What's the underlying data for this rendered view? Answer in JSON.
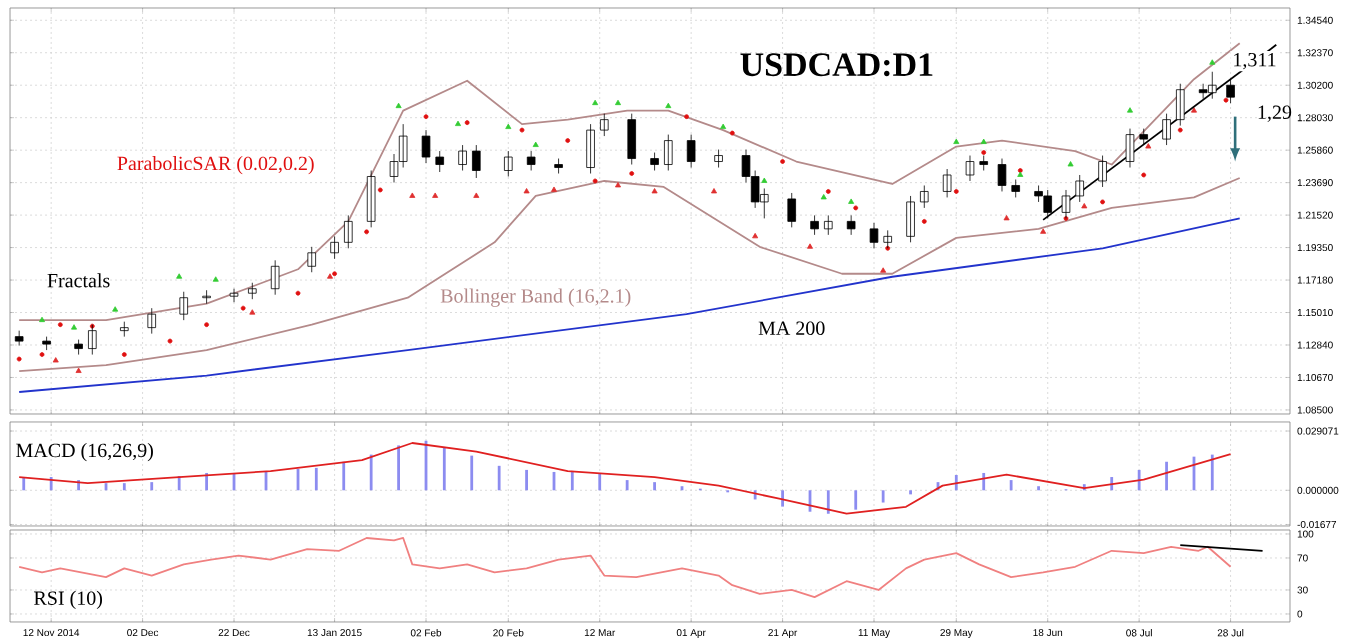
{
  "chart_data": [
    {
      "type": "candlestick",
      "title": "USDCAD:D1",
      "x": [
        "2014-11-05",
        "2014-11-11",
        "2014-11-18",
        "2014-11-21",
        "2014-11-28",
        "2014-12-04",
        "2014-12-11",
        "2014-12-16",
        "2014-12-22",
        "2014-12-26",
        "2014-12-31",
        "2015-01-08",
        "2015-01-13",
        "2015-01-16",
        "2015-01-21",
        "2015-01-26",
        "2015-01-28",
        "2015-02-02",
        "2015-02-05",
        "2015-02-10",
        "2015-02-13",
        "2015-02-20",
        "2015-02-25",
        "2015-03-03",
        "2015-03-10",
        "2015-03-13",
        "2015-03-19",
        "2015-03-24",
        "2015-03-27",
        "2015-04-01",
        "2015-04-07",
        "2015-04-13",
        "2015-04-15",
        "2015-04-17",
        "2015-04-23",
        "2015-04-28",
        "2015-05-01",
        "2015-05-06",
        "2015-05-11",
        "2015-05-14",
        "2015-05-19",
        "2015-05-22",
        "2015-05-27",
        "2015-06-01",
        "2015-06-04",
        "2015-06-08",
        "2015-06-11",
        "2015-06-16",
        "2015-06-18",
        "2015-06-22",
        "2015-06-25",
        "2015-06-30",
        "2015-07-06",
        "2015-07-09",
        "2015-07-14",
        "2015-07-17",
        "2015-07-22",
        "2015-07-24",
        "2015-07-28"
      ],
      "ohlc": [
        [
          1.134,
          1.138,
          1.128,
          1.131
        ],
        [
          1.131,
          1.134,
          1.125,
          1.129
        ],
        [
          1.129,
          1.132,
          1.122,
          1.126
        ],
        [
          1.126,
          1.142,
          1.122,
          1.138
        ],
        [
          1.138,
          1.144,
          1.134,
          1.14
        ],
        [
          1.14,
          1.153,
          1.136,
          1.149
        ],
        [
          1.149,
          1.164,
          1.145,
          1.16
        ],
        [
          1.16,
          1.165,
          1.156,
          1.161
        ],
        [
          1.161,
          1.166,
          1.157,
          1.163
        ],
        [
          1.163,
          1.17,
          1.159,
          1.166
        ],
        [
          1.166,
          1.185,
          1.162,
          1.181
        ],
        [
          1.181,
          1.194,
          1.177,
          1.19
        ],
        [
          1.19,
          1.201,
          1.186,
          1.197
        ],
        [
          1.197,
          1.215,
          1.193,
          1.211
        ],
        [
          1.211,
          1.245,
          1.207,
          1.241
        ],
        [
          1.241,
          1.256,
          1.237,
          1.251
        ],
        [
          1.251,
          1.276,
          1.247,
          1.268
        ],
        [
          1.268,
          1.272,
          1.25,
          1.254
        ],
        [
          1.254,
          1.258,
          1.244,
          1.249
        ],
        [
          1.249,
          1.262,
          1.245,
          1.258
        ],
        [
          1.258,
          1.262,
          1.24,
          1.245
        ],
        [
          1.245,
          1.258,
          1.241,
          1.254
        ],
        [
          1.254,
          1.258,
          1.245,
          1.249
        ],
        [
          1.249,
          1.253,
          1.243,
          1.247
        ],
        [
          1.247,
          1.276,
          1.243,
          1.272
        ],
        [
          1.272,
          1.283,
          1.268,
          1.279
        ],
        [
          1.279,
          1.283,
          1.249,
          1.253
        ],
        [
          1.253,
          1.257,
          1.245,
          1.249
        ],
        [
          1.249,
          1.269,
          1.245,
          1.265
        ],
        [
          1.265,
          1.269,
          1.247,
          1.251
        ],
        [
          1.251,
          1.259,
          1.247,
          1.255
        ],
        [
          1.255,
          1.259,
          1.237,
          1.241
        ],
        [
          1.241,
          1.245,
          1.22,
          1.224
        ],
        [
          1.224,
          1.233,
          1.213,
          1.229
        ],
        [
          1.226,
          1.23,
          1.207,
          1.211
        ],
        [
          1.211,
          1.215,
          1.202,
          1.206
        ],
        [
          1.206,
          1.215,
          1.202,
          1.211
        ],
        [
          1.211,
          1.215,
          1.202,
          1.206
        ],
        [
          1.206,
          1.21,
          1.193,
          1.197
        ],
        [
          1.197,
          1.205,
          1.193,
          1.201
        ],
        [
          1.201,
          1.228,
          1.197,
          1.224
        ],
        [
          1.224,
          1.235,
          1.22,
          1.231
        ],
        [
          1.231,
          1.246,
          1.227,
          1.242
        ],
        [
          1.242,
          1.255,
          1.238,
          1.251
        ],
        [
          1.251,
          1.255,
          1.245,
          1.249
        ],
        [
          1.249,
          1.253,
          1.231,
          1.235
        ],
        [
          1.235,
          1.239,
          1.227,
          1.231
        ],
        [
          1.231,
          1.235,
          1.224,
          1.228
        ],
        [
          1.228,
          1.232,
          1.213,
          1.217
        ],
        [
          1.217,
          1.232,
          1.213,
          1.228
        ],
        [
          1.228,
          1.242,
          1.224,
          1.238
        ],
        [
          1.238,
          1.255,
          1.234,
          1.251
        ],
        [
          1.251,
          1.273,
          1.247,
          1.269
        ],
        [
          1.269,
          1.273,
          1.262,
          1.266
        ],
        [
          1.266,
          1.283,
          1.262,
          1.279
        ],
        [
          1.279,
          1.303,
          1.275,
          1.299
        ],
        [
          1.299,
          1.303,
          1.293,
          1.297
        ],
        [
          1.297,
          1.311,
          1.293,
          1.302
        ],
        [
          1.302,
          1.306,
          1.29,
          1.294
        ]
      ],
      "series": [
        {
          "name": "MA 200",
          "type": "line",
          "color": "#2233cc",
          "x": [
            "2014-11-05",
            "2014-12-16",
            "2015-01-29",
            "2015-03-31",
            "2015-05-15",
            "2015-06-30",
            "2015-07-30"
          ],
          "values": [
            1.097,
            1.108,
            1.125,
            1.149,
            1.174,
            1.193,
            1.213
          ]
        },
        {
          "name": "Bollinger Band (16,2.1)",
          "type": "line",
          "color": "#b48a8a",
          "x": [
            "2014-11-05",
            "2014-11-24",
            "2014-12-16",
            "2015-01-05",
            "2015-01-16",
            "2015-01-28",
            "2015-02-11",
            "2015-02-23",
            "2015-03-05",
            "2015-03-18",
            "2015-03-27",
            "2015-04-08",
            "2015-04-24",
            "2015-05-15",
            "2015-05-29",
            "2015-06-08",
            "2015-06-24",
            "2015-07-02",
            "2015-07-20",
            "2015-07-30"
          ],
          "values": [
            1.145,
            1.145,
            1.156,
            1.179,
            1.211,
            1.285,
            1.305,
            1.276,
            1.279,
            1.285,
            1.285,
            1.272,
            1.251,
            1.236,
            1.261,
            1.265,
            1.258,
            1.249,
            1.306,
            1.33
          ]
        },
        {
          "type": "line",
          "color": "#b48a8a",
          "x": [
            "2014-11-05",
            "2014-11-24",
            "2014-12-16",
            "2015-01-08",
            "2015-01-29",
            "2015-02-17",
            "2015-02-26",
            "2015-03-13",
            "2015-03-26",
            "2015-04-16",
            "2015-05-04",
            "2015-05-15",
            "2015-05-29",
            "2015-06-16",
            "2015-07-02",
            "2015-07-20",
            "2015-07-30"
          ],
          "values": [
            1.111,
            1.115,
            1.125,
            1.142,
            1.16,
            1.197,
            1.228,
            1.238,
            1.234,
            1.194,
            1.176,
            1.176,
            1.2,
            1.206,
            1.22,
            1.227,
            1.24
          ]
        },
        {
          "name": "ParabolicSAR (0.02,0.2)",
          "type": "scatter",
          "marker": "circle",
          "color": "#e01010",
          "x": [
            "2014-11-05",
            "2014-11-10",
            "2014-11-14",
            "2014-11-21",
            "2014-11-28",
            "2014-12-08",
            "2014-12-16",
            "2014-12-24",
            "2015-01-05",
            "2015-01-13",
            "2015-01-20",
            "2015-01-23",
            "2015-02-02",
            "2015-02-11",
            "2015-02-23",
            "2015-03-05",
            "2015-03-11",
            "2015-03-19",
            "2015-03-31",
            "2015-04-10",
            "2015-04-21",
            "2015-05-01",
            "2015-05-07",
            "2015-05-14",
            "2015-05-22",
            "2015-05-29",
            "2015-06-04",
            "2015-06-12",
            "2015-06-22",
            "2015-06-30",
            "2015-07-09",
            "2015-07-17",
            "2015-07-27"
          ],
          "values": [
            1.119,
            1.122,
            1.142,
            1.141,
            1.122,
            1.131,
            1.142,
            1.153,
            1.163,
            1.176,
            1.204,
            1.232,
            1.281,
            1.277,
            1.272,
            1.265,
            1.238,
            1.243,
            1.281,
            1.27,
            1.251,
            1.231,
            1.22,
            1.193,
            1.211,
            1.231,
            1.257,
            1.245,
            1.213,
            1.224,
            1.242,
            1.272,
            1.292
          ]
        },
        {
          "name": "Fractals",
          "type": "scatter",
          "marker": "triangle",
          "color": "#33cc33",
          "x": [
            "2014-11-10",
            "2014-11-17",
            "2014-11-26",
            "2014-12-10",
            "2014-12-18",
            "2015-01-27",
            "2015-02-09",
            "2015-02-20",
            "2015-02-26",
            "2015-03-11",
            "2015-03-16",
            "2015-03-27",
            "2015-04-08",
            "2015-04-17",
            "2015-04-30",
            "2015-05-06",
            "2015-05-29",
            "2015-06-04",
            "2015-06-12",
            "2015-06-23",
            "2015-07-06",
            "2015-07-24"
          ],
          "values": [
            1.145,
            1.14,
            1.152,
            1.174,
            1.172,
            1.288,
            1.276,
            1.274,
            1.262,
            1.29,
            1.29,
            1.288,
            1.274,
            1.238,
            1.227,
            1.224,
            1.264,
            1.264,
            1.242,
            1.249,
            1.285,
            1.317
          ]
        },
        {
          "type": "scatter",
          "marker": "triangle",
          "color": "#e03030",
          "x": [
            "2014-11-13",
            "2014-11-18",
            "2014-12-26",
            "2015-01-12",
            "2015-01-30",
            "2015-02-04",
            "2015-02-13",
            "2015-02-24",
            "2015-03-02",
            "2015-03-16",
            "2015-03-24",
            "2015-04-06",
            "2015-04-15",
            "2015-04-27",
            "2015-05-13",
            "2015-06-09",
            "2015-06-17",
            "2015-06-26",
            "2015-07-10",
            "2015-07-20"
          ],
          "values": [
            1.118,
            1.111,
            1.15,
            1.174,
            1.228,
            1.228,
            1.228,
            1.231,
            1.232,
            1.235,
            1.231,
            1.231,
            1.201,
            1.194,
            1.178,
            1.213,
            1.204,
            1.221,
            1.261,
            1.285
          ]
        },
        {
          "type": "line",
          "color": "#000000",
          "x": [
            "2015-06-17",
            "2015-08-07"
          ],
          "values": [
            1.212,
            1.329
          ]
        }
      ],
      "annotations": [
        {
          "text": "1,311",
          "x": "2015-07-27",
          "y": 1.311
        },
        {
          "text": "1,29",
          "x": "2015-07-28",
          "y": 1.29
        }
      ],
      "xlim": [
        "2014-11-03",
        "2015-08-10"
      ],
      "ylim": [
        1.0823,
        1.3536
      ],
      "xticks": [
        "2014-11-12",
        "2014-12-02",
        "2014-12-22",
        "2015-01-13",
        "2015-02-02",
        "2015-02-20",
        "2015-03-12",
        "2015-04-01",
        "2015-04-21",
        "2015-05-11",
        "2015-05-29",
        "2015-06-18",
        "2015-07-08",
        "2015-07-28"
      ],
      "yticks": [
        {
          "value": 1.3454,
          "label": "1.34540"
        },
        {
          "value": 1.3237,
          "label": "1.32370"
        },
        {
          "value": 1.302,
          "label": "1.30200"
        },
        {
          "value": 1.2803,
          "label": "1.28030"
        },
        {
          "value": 1.2586,
          "label": "1.25860"
        },
        {
          "value": 1.2369,
          "label": "1.23690"
        },
        {
          "value": 1.2152,
          "label": "1.21520"
        },
        {
          "value": 1.1935,
          "label": "1.19350"
        },
        {
          "value": 1.1718,
          "label": "1.17180"
        },
        {
          "value": 1.1501,
          "label": "1.15010"
        },
        {
          "value": 1.1284,
          "label": "1.12840"
        },
        {
          "value": 1.1067,
          "label": "1.10670"
        },
        {
          "value": 1.085,
          "label": "1.08500"
        }
      ],
      "tick_labels": "y",
      "grid": true
    },
    {
      "type": "bar",
      "title": "MACD (16,26,9)",
      "color": "#8c8cf0",
      "x": [
        "2014-11-06",
        "2014-11-12",
        "2014-11-18",
        "2014-11-24",
        "2014-11-28",
        "2014-12-04",
        "2014-12-10",
        "2014-12-16",
        "2014-12-22",
        "2014-12-29",
        "2015-01-05",
        "2015-01-09",
        "2015-01-15",
        "2015-01-21",
        "2015-01-27",
        "2015-02-02",
        "2015-02-06",
        "2015-02-12",
        "2015-02-18",
        "2015-02-24",
        "2015-03-02",
        "2015-03-06",
        "2015-03-12",
        "2015-03-18",
        "2015-03-24",
        "2015-03-30",
        "2015-04-03",
        "2015-04-09",
        "2015-04-15",
        "2015-04-21",
        "2015-04-27",
        "2015-05-01",
        "2015-05-07",
        "2015-05-13",
        "2015-05-19",
        "2015-05-25",
        "2015-05-29",
        "2015-06-04",
        "2015-06-10",
        "2015-06-16",
        "2015-06-22",
        "2015-06-26",
        "2015-07-02",
        "2015-07-08",
        "2015-07-14",
        "2015-07-20",
        "2015-07-24"
      ],
      "values": [
        0.0065,
        0.0065,
        0.005,
        0.0035,
        0.0035,
        0.004,
        0.007,
        0.0085,
        0.0085,
        0.009,
        0.0105,
        0.011,
        0.014,
        0.0175,
        0.022,
        0.0243,
        0.021,
        0.017,
        0.012,
        0.01,
        0.009,
        0.0095,
        0.008,
        0.005,
        0.004,
        0.002,
        0.0008,
        -0.001,
        -0.0045,
        -0.008,
        -0.0105,
        -0.0115,
        -0.0095,
        -0.006,
        -0.002,
        0.004,
        0.0075,
        0.0085,
        0.005,
        0.002,
        0.0005,
        0.003,
        0.0065,
        0.01,
        0.014,
        0.0165,
        0.0175
      ],
      "series": [
        {
          "type": "line",
          "color": "#e02020",
          "x": [
            "2014-11-05",
            "2014-11-20",
            "2014-12-10",
            "2014-12-30",
            "2015-01-19",
            "2015-01-30",
            "2015-02-13",
            "2015-03-05",
            "2015-03-24",
            "2015-04-07",
            "2015-04-20",
            "2015-05-05",
            "2015-05-18",
            "2015-05-26",
            "2015-06-09",
            "2015-06-26",
            "2015-07-09",
            "2015-07-28"
          ],
          "values": [
            0.0065,
            0.0035,
            0.0065,
            0.0094,
            0.0148,
            0.0232,
            0.019,
            0.0094,
            0.0065,
            0.0023,
            -0.004,
            -0.0114,
            -0.0081,
            0.0023,
            0.0077,
            0.0011,
            0.0052,
            0.0177
          ]
        }
      ],
      "xlim": [
        "2014-11-03",
        "2015-08-10"
      ],
      "ylim": [
        -0.0175,
        0.0335
      ],
      "xticks": [
        "2014-11-12",
        "2014-12-02",
        "2014-12-22",
        "2015-01-13",
        "2015-02-02",
        "2015-02-20",
        "2015-03-12",
        "2015-04-01",
        "2015-04-21",
        "2015-05-11",
        "2015-05-29",
        "2015-06-18",
        "2015-07-08",
        "2015-07-28"
      ],
      "yticks": [
        {
          "value": 0.029071,
          "label": "0.029071"
        },
        {
          "value": 0,
          "label": "0.000000"
        },
        {
          "value": -0.01677,
          "label": "-0.01677"
        }
      ],
      "tick_labels": "y",
      "grid": true
    },
    {
      "type": "line",
      "title": "RSI (10)",
      "color": "#f08080",
      "x": [
        "2014-11-05",
        "2014-11-10",
        "2014-11-14",
        "2014-11-24",
        "2014-11-28",
        "2014-12-04",
        "2014-12-11",
        "2014-12-17",
        "2014-12-23",
        "2014-12-30",
        "2015-01-07",
        "2015-01-14",
        "2015-01-20",
        "2015-01-26",
        "2015-01-28",
        "2015-01-30",
        "2015-02-05",
        "2015-02-11",
        "2015-02-17",
        "2015-02-24",
        "2015-03-03",
        "2015-03-10",
        "2015-03-13",
        "2015-03-20",
        "2015-03-30",
        "2015-04-07",
        "2015-04-10",
        "2015-04-16",
        "2015-04-23",
        "2015-04-28",
        "2015-05-05",
        "2015-05-12",
        "2015-05-18",
        "2015-05-22",
        "2015-05-29",
        "2015-06-03",
        "2015-06-10",
        "2015-06-17",
        "2015-06-24",
        "2015-07-02",
        "2015-07-09",
        "2015-07-15",
        "2015-07-21",
        "2015-07-23",
        "2015-07-28"
      ],
      "values": [
        59,
        52,
        57,
        46,
        57,
        48,
        62,
        68,
        73,
        68,
        81,
        79,
        95,
        92,
        95,
        62,
        57,
        62,
        52,
        57,
        68,
        73,
        48,
        46,
        57,
        48,
        36,
        25,
        30,
        21,
        41,
        30,
        57,
        68,
        76,
        62,
        46,
        52,
        59,
        79,
        76,
        84,
        79,
        84,
        59
      ],
      "series": [
        {
          "type": "line",
          "color": "#000000",
          "x": [
            "2015-07-17",
            "2015-08-04"
          ],
          "values": [
            86,
            79
          ]
        }
      ],
      "xlim": [
        "2014-11-03",
        "2015-08-10"
      ],
      "ylim": [
        -10,
        105
      ],
      "xticks": [
        {
          "value": "2014-11-12",
          "label": "12 Nov 2014"
        },
        {
          "value": "2014-12-02",
          "label": "02 Dec"
        },
        {
          "value": "2014-12-22",
          "label": "22 Dec"
        },
        {
          "value": "2015-01-13",
          "label": "13 Jan 2015"
        },
        {
          "value": "2015-02-02",
          "label": "02 Feb"
        },
        {
          "value": "2015-02-20",
          "label": "20 Feb"
        },
        {
          "value": "2015-03-12",
          "label": "12 Mar"
        },
        {
          "value": "2015-04-01",
          "label": "01 Apr"
        },
        {
          "value": "2015-04-21",
          "label": "21 Apr"
        },
        {
          "value": "2015-05-11",
          "label": "11 May"
        },
        {
          "value": "2015-05-29",
          "label": "29 May"
        },
        {
          "value": "2015-06-18",
          "label": "18 Jun"
        },
        {
          "value": "2015-07-08",
          "label": "08 Jul"
        },
        {
          "value": "2015-07-28",
          "label": "28 Jul"
        }
      ],
      "yticks": [
        100,
        70,
        30,
        0
      ],
      "grid": true
    }
  ]
}
